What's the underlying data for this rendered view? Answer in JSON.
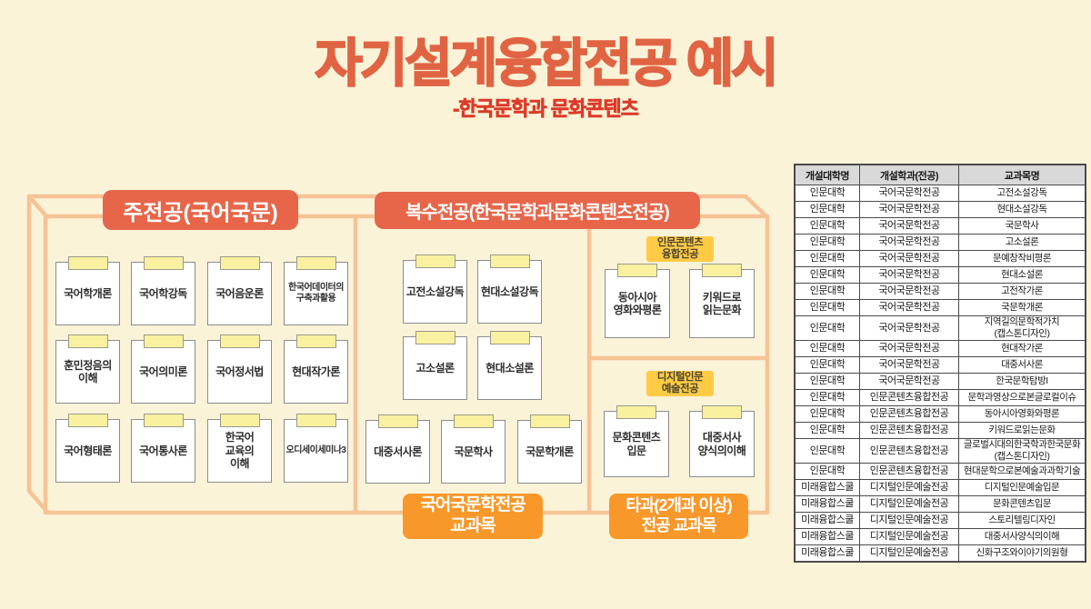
{
  "title": "자기설계융합전공 예시",
  "subtitle": "-한국문학과 문화콘텐츠",
  "colors": {
    "background": "#FAF3D8",
    "title": "#E06443",
    "subtitle": "#DD3A28",
    "group_header": "#E7664A",
    "footer_label": "#F8982A",
    "sub_label": "#FFCB45",
    "box_outline": "#F6C395",
    "sticky_tab": "#F9F0A0",
    "table_header_bg": "#D9D9D9"
  },
  "groups": {
    "main": {
      "header": "주전공(국어국문)",
      "cards": [
        "국어학개론",
        "국어학강독",
        "국어음운론",
        "한국어데이터의\n구축과활용",
        "훈민정음의\n이해",
        "국어의미론",
        "국어정서법",
        "현대작가론",
        "국어형태론",
        "국어통사론",
        "한국어\n교육의\n이해",
        "오디세이세미나3"
      ]
    },
    "double": {
      "header": "복수전공(한국문학과문화콘텐츠전공)",
      "cards": [
        "고전소설강독",
        "현대소설강독",
        "고소설론",
        "현대소설론",
        "대중서사론",
        "국문학사",
        "국문학개론"
      ],
      "footer": "국어국문학전공\n교과목"
    },
    "other": {
      "sub1_label": "인문콘텐츠\n융합전공",
      "sub1_cards": [
        "동아시아\n영화와평론",
        "키워드로\n읽는문화"
      ],
      "sub2_label": "디지털인문\n예술전공",
      "sub2_cards": [
        "문화콘텐츠\n입문",
        "대중서사\n양식의이해"
      ],
      "footer": "타과(2개과 이상)\n전공 교과목"
    }
  },
  "table": {
    "headers": [
      "개설대학명",
      "개설학과(전공)",
      "교과목명"
    ],
    "rows": [
      [
        "인문대학",
        "국어국문학전공",
        "고전소설강독"
      ],
      [
        "인문대학",
        "국어국문학전공",
        "현대소설강독"
      ],
      [
        "인문대학",
        "국어국문학전공",
        "국문학사"
      ],
      [
        "인문대학",
        "국어국문학전공",
        "고소설론"
      ],
      [
        "인문대학",
        "국어국문학전공",
        "문예창작비평론"
      ],
      [
        "인문대학",
        "국어국문학전공",
        "현대소설론"
      ],
      [
        "인문대학",
        "국어국문학전공",
        "고전작가론"
      ],
      [
        "인문대학",
        "국어국문학전공",
        "국문학개론"
      ],
      [
        "인문대학",
        "국어국문학전공",
        "지역길의문학적가치\n(캡스톤디자인)"
      ],
      [
        "인문대학",
        "국어국문학전공",
        "현대작가론"
      ],
      [
        "인문대학",
        "국어국문학전공",
        "대중서사론"
      ],
      [
        "인문대학",
        "국어국문학전공",
        "한국문학탐방I"
      ],
      [
        "인문대학",
        "인문콘텐츠융합전공",
        "문학과영상으로본글로컬이슈"
      ],
      [
        "인문대학",
        "인문콘텐츠융합전공",
        "동아시아영화와평론"
      ],
      [
        "인문대학",
        "인문콘텐츠융합전공",
        "키워드로읽는문화"
      ],
      [
        "인문대학",
        "인문콘텐츠융합전공",
        "글로벌시대의한국학과한국문화\n(캡스톤디자인)"
      ],
      [
        "인문대학",
        "인문콘텐츠융합전공",
        "현대문학으로본예술과과학기술"
      ],
      [
        "미래융합스쿨",
        "디지털인문예술전공",
        "디지털인문예술입문"
      ],
      [
        "미래융합스쿨",
        "디지털인문예술전공",
        "문화콘텐츠입문"
      ],
      [
        "미래융합스쿨",
        "디지털인문예술전공",
        "스토리텔링디자인"
      ],
      [
        "미래융합스쿨",
        "디지털인문예술전공",
        "대중서사양식의이해"
      ],
      [
        "미래융합스쿨",
        "디지털인문예술전공",
        "신화구조와이야기의원형"
      ]
    ]
  }
}
